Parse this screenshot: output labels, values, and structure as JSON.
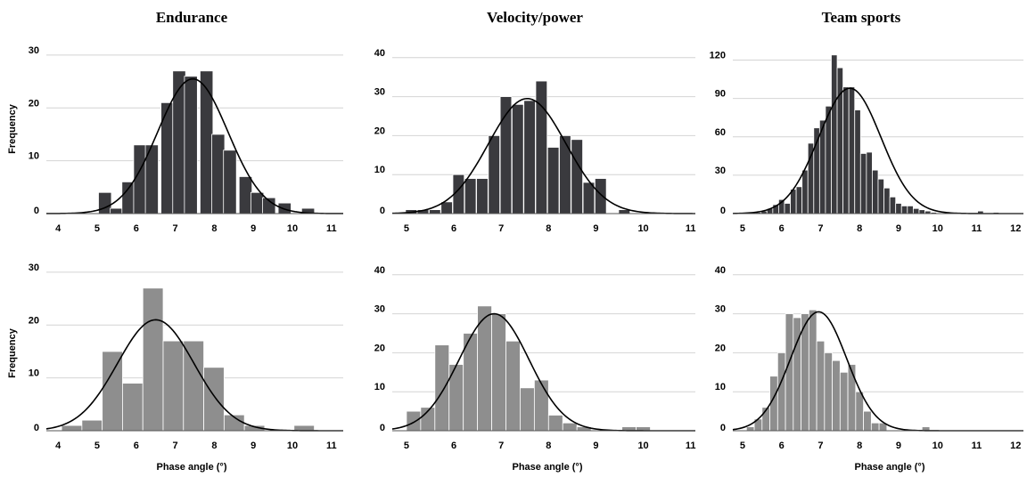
{
  "titles": [
    "Endurance",
    "Velocity/power",
    "Team sports"
  ],
  "ylabel": "Frequency",
  "xlabel": "Phase angle (°)",
  "colors": {
    "top_bars": "#3a3a3e",
    "bottom_bars": "#8e8e8e",
    "grid": "#d4d4d4",
    "curve": "#000000"
  },
  "chart_data": [
    {
      "type": "bar",
      "panel": "top-left",
      "title": "Endurance",
      "xlim": [
        3.7,
        11.3
      ],
      "xticks": [
        4,
        5,
        6,
        7,
        8,
        9,
        10,
        11
      ],
      "ylim": [
        0,
        31
      ],
      "yticks": [
        0,
        10,
        20,
        30
      ],
      "bin_width": 0.33,
      "x": [
        5.2,
        5.5,
        5.8,
        6.1,
        6.4,
        6.8,
        7.1,
        7.4,
        7.8,
        8.1,
        8.4,
        8.8,
        9.1,
        9.4,
        9.8,
        10.4
      ],
      "values": [
        4,
        1,
        6,
        13,
        13,
        21,
        27,
        26,
        27,
        15,
        12,
        7,
        4,
        3,
        2,
        1
      ],
      "fit_curve": {
        "type": "normal",
        "mean": 7.45,
        "sd": 0.9,
        "peak": 25.5
      }
    },
    {
      "type": "bar",
      "panel": "top-middle",
      "title": "Velocity/power",
      "xlim": [
        4.7,
        11.1
      ],
      "xticks": [
        5,
        6,
        7,
        8,
        9,
        10,
        11
      ],
      "ylim": [
        0,
        42
      ],
      "yticks": [
        0,
        10,
        20,
        30,
        40
      ],
      "bin_width": 0.24,
      "x": [
        5.1,
        5.35,
        5.6,
        5.85,
        6.1,
        6.35,
        6.6,
        6.85,
        7.1,
        7.35,
        7.6,
        7.85,
        8.1,
        8.35,
        8.6,
        8.85,
        9.1,
        9.6
      ],
      "values": [
        1,
        1,
        1,
        3,
        10,
        9,
        9,
        20,
        30,
        28,
        29,
        34,
        17,
        20,
        19,
        8,
        9,
        1
      ],
      "fit_curve": {
        "type": "normal",
        "mean": 7.55,
        "sd": 0.82,
        "peak": 29.5
      }
    },
    {
      "type": "bar",
      "panel": "top-right",
      "title": "Team sports",
      "xlim": [
        4.75,
        12.2
      ],
      "xticks": [
        5,
        6,
        7,
        8,
        9,
        10,
        11,
        12
      ],
      "ylim": [
        0,
        128
      ],
      "yticks": [
        0,
        30,
        60,
        90,
        120
      ],
      "bin_width": 0.15,
      "x": [
        5.4,
        5.55,
        5.7,
        5.85,
        6.0,
        6.15,
        6.3,
        6.45,
        6.6,
        6.75,
        6.9,
        7.05,
        7.2,
        7.35,
        7.5,
        7.65,
        7.8,
        7.95,
        8.1,
        8.25,
        8.4,
        8.55,
        8.7,
        8.85,
        9.0,
        9.15,
        9.3,
        9.45,
        9.6,
        9.75,
        9.9,
        10.05,
        11.1,
        11.5
      ],
      "values": [
        1,
        2,
        4,
        7,
        11,
        8,
        19,
        21,
        34,
        55,
        67,
        73,
        84,
        124,
        114,
        99,
        99,
        81,
        47,
        48,
        34,
        27,
        20,
        13,
        8,
        6,
        6,
        4,
        3,
        2,
        1,
        0,
        2,
        1
      ],
      "fit_curve": {
        "type": "normal",
        "mean": 7.75,
        "sd": 0.8,
        "peak": 98
      }
    },
    {
      "type": "bar",
      "panel": "bottom-left",
      "title": "",
      "xlim": [
        3.7,
        11.3
      ],
      "xticks": [
        4,
        5,
        6,
        7,
        8,
        9,
        10,
        11
      ],
      "ylim": [
        0,
        31
      ],
      "yticks": [
        0,
        10,
        20,
        30
      ],
      "bin_width": 0.52,
      "x": [
        4.35,
        4.87,
        5.39,
        5.91,
        6.43,
        6.95,
        7.47,
        7.99,
        8.51,
        9.03,
        10.3
      ],
      "values": [
        1,
        2,
        15,
        9,
        27,
        17,
        17,
        12,
        3,
        1,
        1
      ],
      "fit_curve": {
        "type": "normal",
        "mean": 6.5,
        "sd": 0.98,
        "peak": 21
      }
    },
    {
      "type": "bar",
      "panel": "bottom-middle",
      "title": "",
      "xlim": [
        4.7,
        11.1
      ],
      "xticks": [
        5,
        6,
        7,
        8,
        9,
        10,
        11
      ],
      "ylim": [
        0,
        42
      ],
      "yticks": [
        0,
        10,
        20,
        30,
        40
      ],
      "bin_width": 0.3,
      "x": [
        5.15,
        5.45,
        5.75,
        6.05,
        6.35,
        6.65,
        6.95,
        7.25,
        7.55,
        7.85,
        8.15,
        8.45,
        8.75,
        9.7,
        10.0
      ],
      "values": [
        5,
        6,
        22,
        17,
        25,
        32,
        30,
        23,
        11,
        13,
        4,
        2,
        1,
        1,
        1
      ],
      "fit_curve": {
        "type": "normal",
        "mean": 6.85,
        "sd": 0.74,
        "peak": 30
      }
    },
    {
      "type": "bar",
      "panel": "bottom-right",
      "title": "",
      "xlim": [
        4.75,
        12.2
      ],
      "xticks": [
        5,
        6,
        7,
        8,
        9,
        10,
        11,
        12
      ],
      "ylim": [
        0,
        42
      ],
      "yticks": [
        0,
        10,
        20,
        30,
        40
      ],
      "bin_width": 0.2,
      "x": [
        5.2,
        5.4,
        5.6,
        5.8,
        6.0,
        6.2,
        6.4,
        6.6,
        6.8,
        7.0,
        7.2,
        7.4,
        7.6,
        7.8,
        8.0,
        8.2,
        8.4,
        8.6,
        9.7
      ],
      "values": [
        1,
        3,
        6,
        14,
        20,
        30,
        29,
        30,
        31,
        23,
        20,
        18,
        15,
        17,
        10,
        5,
        2,
        2,
        1
      ],
      "fit_curve": {
        "type": "normal",
        "mean": 6.95,
        "sd": 0.72,
        "peak": 30.5
      }
    }
  ]
}
